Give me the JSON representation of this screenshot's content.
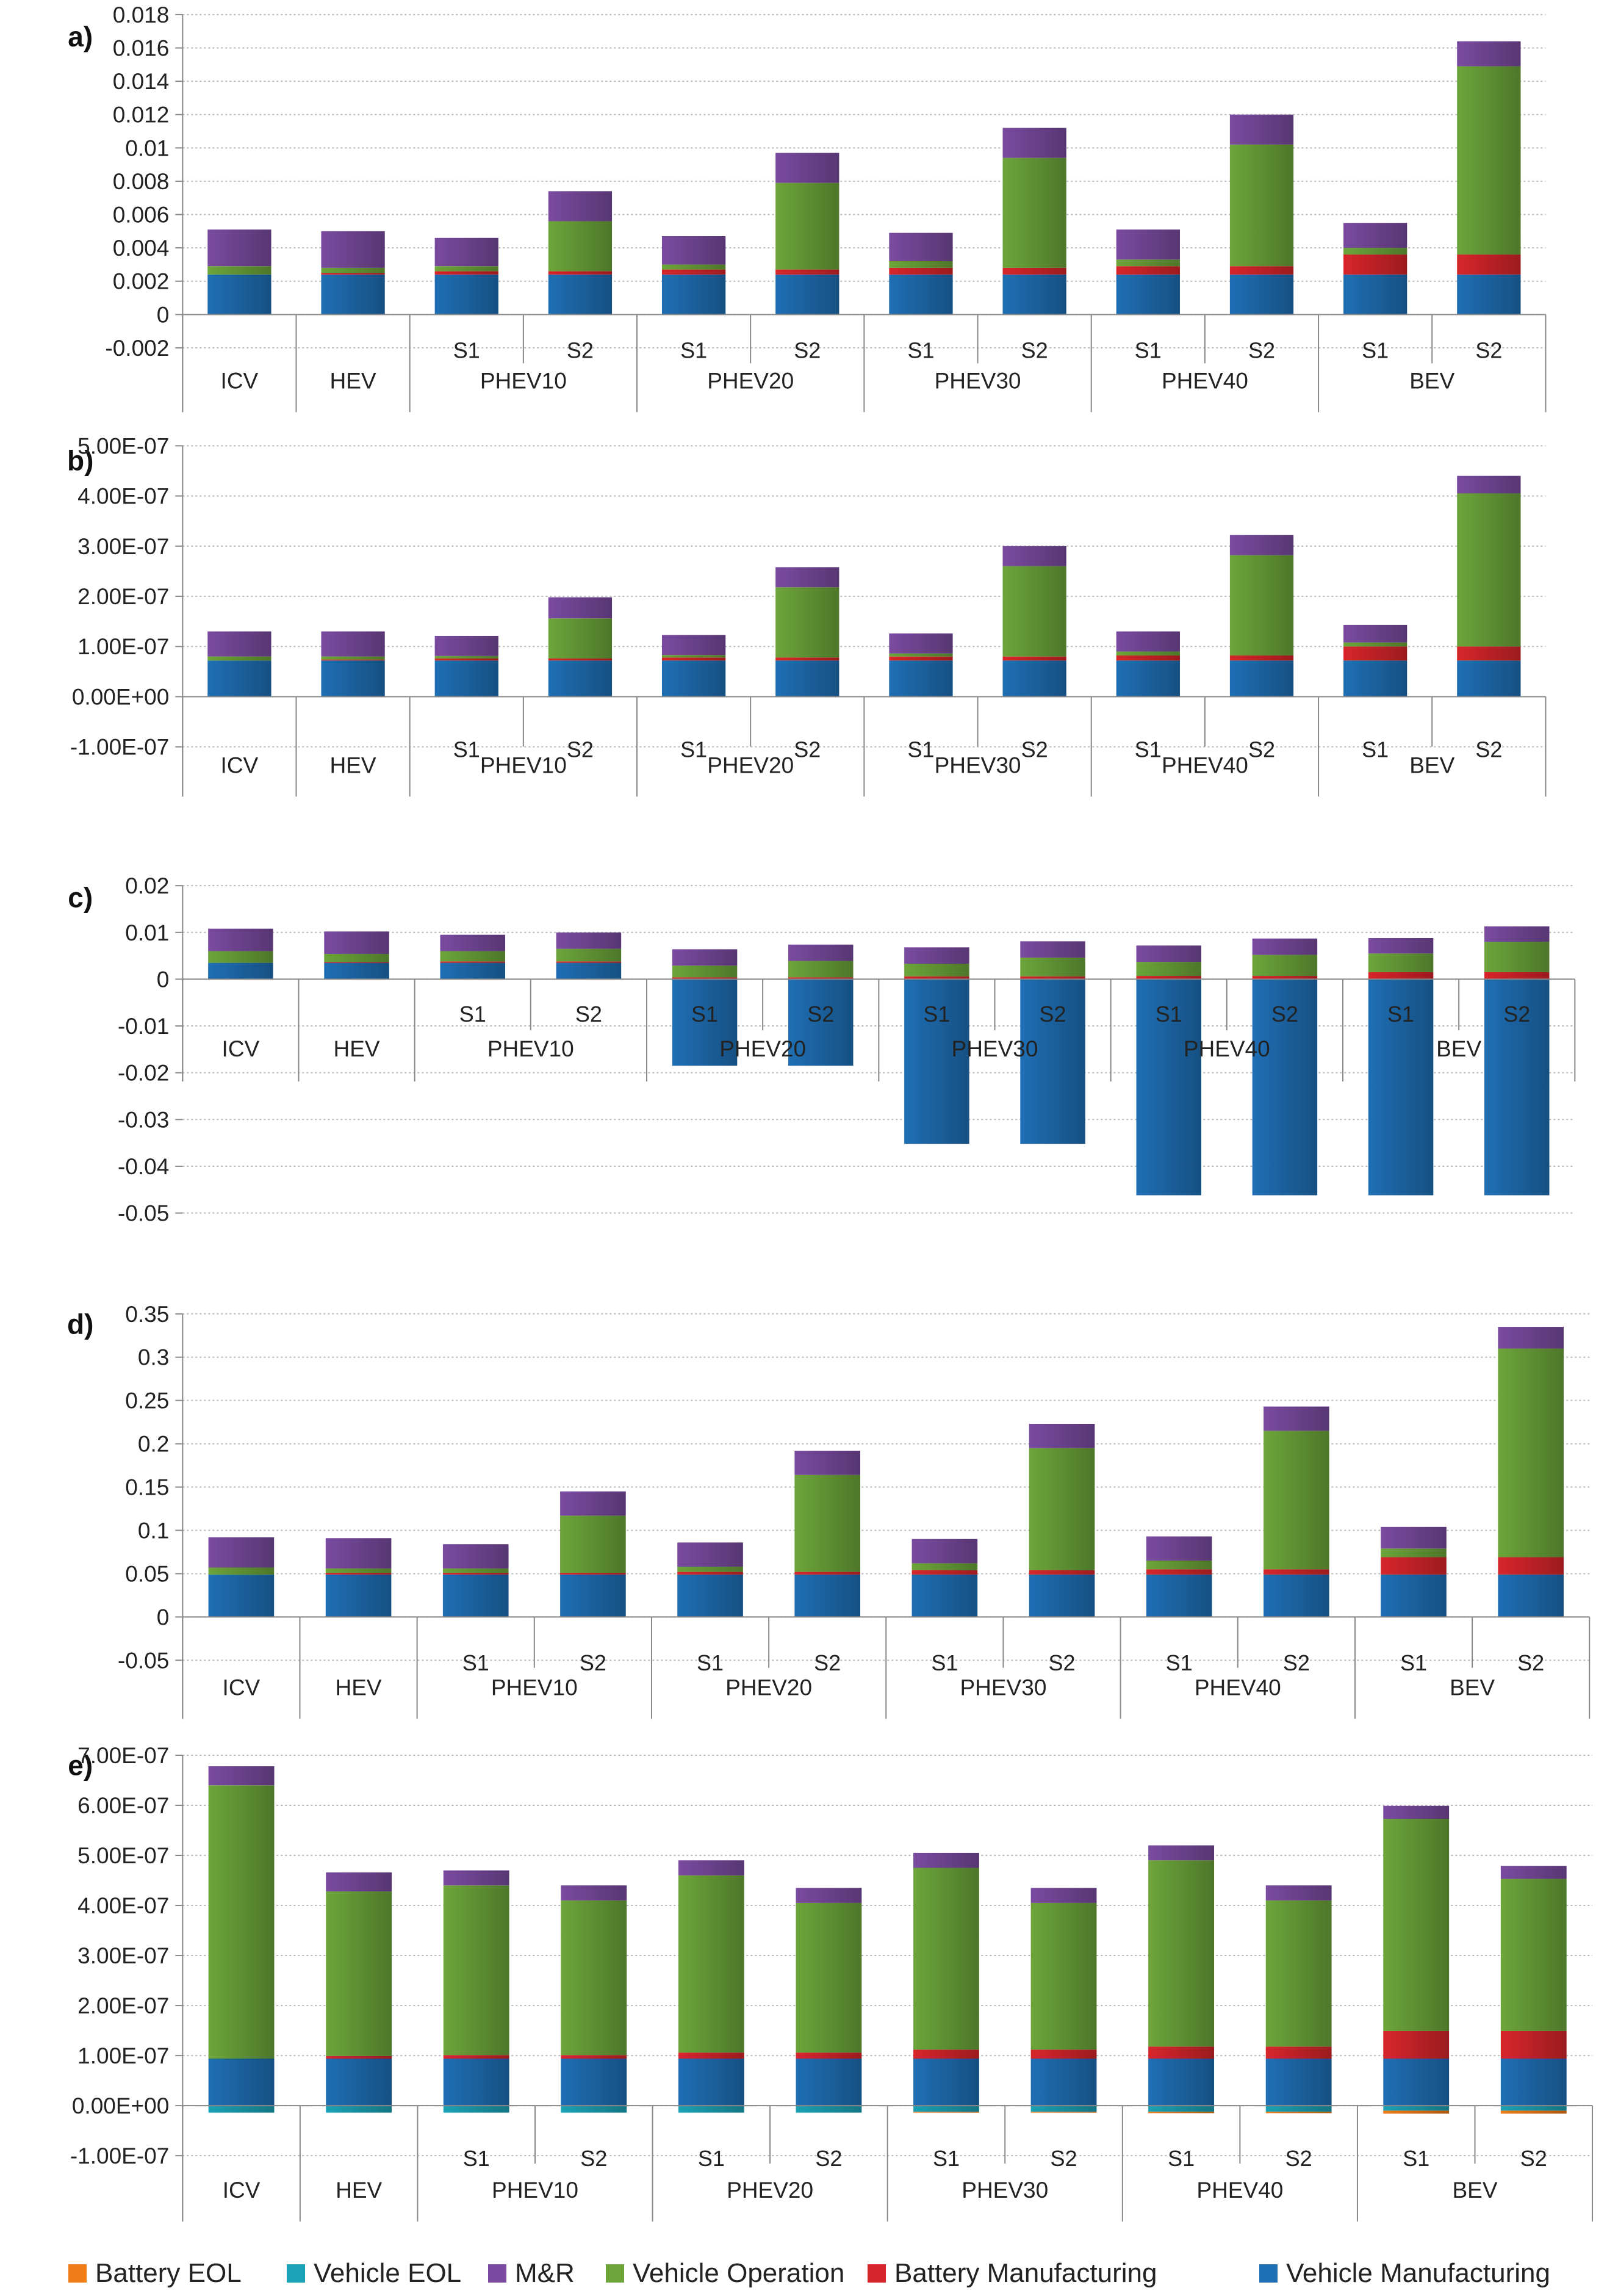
{
  "components": [
    {
      "key": "vm",
      "name": "Vehicle Manufacturing",
      "color": "#1f6fb5"
    },
    {
      "key": "bm",
      "name": "Battery Manufacturing",
      "color": "#d7262b"
    },
    {
      "key": "vo",
      "name": "Vehicle Operation",
      "color": "#6da53a"
    },
    {
      "key": "mr",
      "name": "M&R",
      "color": "#7a4ba0"
    },
    {
      "key": "veol",
      "name": "Vehicle EOL",
      "color": "#1aa2b6"
    },
    {
      "key": "beol",
      "name": "Battery EOL",
      "color": "#ef7d1a"
    }
  ],
  "legend_order": [
    "beol",
    "veol",
    "mr",
    "vo",
    "bm",
    "vm"
  ],
  "categories": [
    {
      "group": "ICV",
      "sub": ""
    },
    {
      "group": "HEV",
      "sub": ""
    },
    {
      "group": "PHEV10",
      "sub": "S1"
    },
    {
      "group": "PHEV10",
      "sub": "S2"
    },
    {
      "group": "PHEV20",
      "sub": "S1"
    },
    {
      "group": "PHEV20",
      "sub": "S2"
    },
    {
      "group": "PHEV30",
      "sub": "S1"
    },
    {
      "group": "PHEV30",
      "sub": "S2"
    },
    {
      "group": "PHEV40",
      "sub": "S1"
    },
    {
      "group": "PHEV40",
      "sub": "S2"
    },
    {
      "group": "BEV",
      "sub": "S1"
    },
    {
      "group": "BEV",
      "sub": "S2"
    }
  ],
  "groups": [
    "ICV",
    "HEV",
    "PHEV10",
    "PHEV20",
    "PHEV30",
    "PHEV40",
    "BEV"
  ],
  "chart_data": [
    {
      "type": "bar",
      "stacked": true,
      "panel_label": "a)",
      "ylim": [
        -0.002,
        0.018
      ],
      "yticks": [
        "0.018",
        "0.016",
        "0.014",
        "0.012",
        "0.01",
        "0.008",
        "0.006",
        "0.004",
        "0.002",
        "0",
        "-0.002"
      ],
      "ytick_values": [
        0.018,
        0.016,
        0.014,
        0.012,
        0.01,
        0.008,
        0.006,
        0.004,
        0.002,
        0,
        -0.002
      ],
      "grid": true,
      "series": [
        {
          "name": "Vehicle Manufacturing",
          "values": [
            0.0024,
            0.0024,
            0.0024,
            0.0024,
            0.0024,
            0.0024,
            0.0024,
            0.0024,
            0.0024,
            0.0024,
            0.0024,
            0.0024
          ]
        },
        {
          "name": "Battery Manufacturing",
          "values": [
            0,
            0.0001,
            0.0002,
            0.0002,
            0.0003,
            0.0003,
            0.0004,
            0.0004,
            0.0005,
            0.0005,
            0.0012,
            0.0012
          ]
        },
        {
          "name": "Vehicle Operation",
          "values": [
            0.0005,
            0.0003,
            0.0003,
            0.003,
            0.0003,
            0.0052,
            0.0004,
            0.0066,
            0.0004,
            0.0073,
            0.0004,
            0.0113
          ]
        },
        {
          "name": "M&R",
          "values": [
            0.0022,
            0.0022,
            0.0017,
            0.0018,
            0.0017,
            0.0018,
            0.0017,
            0.0018,
            0.0018,
            0.0018,
            0.0015,
            0.0015
          ]
        },
        {
          "name": "Vehicle EOL",
          "values": [
            0,
            0,
            0,
            0,
            0,
            0,
            0,
            0,
            0,
            0,
            0,
            0
          ]
        },
        {
          "name": "Battery EOL",
          "values": [
            0,
            0,
            0,
            0,
            0,
            0,
            0,
            0,
            0,
            0,
            0,
            0
          ]
        }
      ]
    },
    {
      "type": "bar",
      "stacked": true,
      "panel_label": "b)",
      "ylim": [
        -1e-07,
        5e-07
      ],
      "yticks": [
        "5.00E-07",
        "4.00E-07",
        "3.00E-07",
        "2.00E-07",
        "1.00E-07",
        "0.00E+00",
        "-1.00E-07"
      ],
      "ytick_values": [
        5e-07,
        4e-07,
        3e-07,
        2e-07,
        1e-07,
        0,
        -1e-07
      ],
      "grid": true,
      "series": [
        {
          "name": "Vehicle Manufacturing",
          "values": [
            7.2e-08,
            7.2e-08,
            7.2e-08,
            7.2e-08,
            7.2e-08,
            7.2e-08,
            7.2e-08,
            7.2e-08,
            7.2e-08,
            7.2e-08,
            7.2e-08,
            7.2e-08
          ]
        },
        {
          "name": "Battery Manufacturing",
          "values": [
            0,
            2e-09,
            4e-09,
            4e-09,
            6e-09,
            6e-09,
            8e-09,
            8e-09,
            1e-08,
            1e-08,
            2.8e-08,
            2.8e-08
          ]
        },
        {
          "name": "Vehicle Operation",
          "values": [
            8e-09,
            6e-09,
            5e-09,
            8e-08,
            5e-09,
            1.4e-07,
            6e-09,
            1.8e-07,
            8e-09,
            2e-07,
            8e-09,
            3.05e-07
          ]
        },
        {
          "name": "M&R",
          "values": [
            5e-08,
            5e-08,
            4e-08,
            4.2e-08,
            4e-08,
            4e-08,
            4e-08,
            4e-08,
            4e-08,
            4e-08,
            3.5e-08,
            3.5e-08
          ]
        },
        {
          "name": "Vehicle EOL",
          "values": [
            0,
            0,
            0,
            0,
            0,
            0,
            0,
            0,
            0,
            0,
            0,
            0
          ]
        },
        {
          "name": "Battery EOL",
          "values": [
            0,
            0,
            0,
            0,
            0,
            0,
            0,
            0,
            0,
            0,
            0,
            0
          ]
        }
      ]
    },
    {
      "type": "bar",
      "stacked": true,
      "panel_label": "c)",
      "ylim": [
        -0.05,
        0.02
      ],
      "yticks": [
        "0.02",
        "0.01",
        "0",
        "-0.01",
        "-0.02",
        "-0.03",
        "-0.04",
        "-0.05"
      ],
      "ytick_values": [
        0.02,
        0.01,
        0,
        -0.01,
        -0.02,
        -0.03,
        -0.04,
        -0.05
      ],
      "grid": true,
      "series": [
        {
          "name": "Vehicle Manufacturing",
          "values": [
            0.0035,
            0.0035,
            0.0035,
            0.0035,
            -0.0185,
            -0.0185,
            -0.0352,
            -0.0352,
            -0.0462,
            -0.0462,
            -0.0462,
            -0.0462
          ]
        },
        {
          "name": "Battery Manufacturing",
          "values": [
            0,
            0.0002,
            0.0003,
            0.0003,
            0.0004,
            0.0004,
            0.0006,
            0.0006,
            0.0007,
            0.0007,
            0.0015,
            0.0015
          ]
        },
        {
          "name": "Vehicle Operation",
          "values": [
            0.0025,
            0.0017,
            0.0022,
            0.0027,
            0.0025,
            0.0035,
            0.0027,
            0.004,
            0.003,
            0.0045,
            0.004,
            0.0065
          ]
        },
        {
          "name": "M&R",
          "values": [
            0.0048,
            0.0048,
            0.0035,
            0.0035,
            0.0035,
            0.0035,
            0.0035,
            0.0035,
            0.0035,
            0.0035,
            0.0033,
            0.0033
          ]
        },
        {
          "name": "Vehicle EOL",
          "values": [
            0,
            0,
            0,
            0,
            0,
            0,
            0,
            0,
            0,
            0,
            0,
            0
          ]
        },
        {
          "name": "Battery EOL",
          "values": [
            0,
            0,
            0,
            0,
            0,
            0,
            0,
            0,
            0,
            0,
            0,
            0
          ]
        }
      ]
    },
    {
      "type": "bar",
      "stacked": true,
      "panel_label": "d)",
      "ylim": [
        -0.05,
        0.35
      ],
      "yticks": [
        "0.35",
        "0.3",
        "0.25",
        "0.2",
        "0.15",
        "0.1",
        "0.05",
        "0",
        "-0.05"
      ],
      "ytick_values": [
        0.35,
        0.3,
        0.25,
        0.2,
        0.15,
        0.1,
        0.05,
        0,
        -0.05
      ],
      "grid": true,
      "series": [
        {
          "name": "Vehicle Manufacturing",
          "values": [
            0.049,
            0.049,
            0.049,
            0.049,
            0.049,
            0.049,
            0.049,
            0.049,
            0.049,
            0.049,
            0.049,
            0.049
          ]
        },
        {
          "name": "Battery Manufacturing",
          "values": [
            0,
            0.002,
            0.002,
            0.002,
            0.003,
            0.003,
            0.005,
            0.005,
            0.006,
            0.006,
            0.02,
            0.02
          ]
        },
        {
          "name": "Vehicle Operation",
          "values": [
            0.008,
            0.005,
            0.005,
            0.066,
            0.006,
            0.112,
            0.008,
            0.141,
            0.01,
            0.16,
            0.01,
            0.241
          ]
        },
        {
          "name": "M&R",
          "values": [
            0.035,
            0.035,
            0.028,
            0.028,
            0.028,
            0.028,
            0.028,
            0.028,
            0.028,
            0.028,
            0.025,
            0.025
          ]
        },
        {
          "name": "Vehicle EOL",
          "values": [
            0,
            0,
            0,
            0,
            0,
            0,
            0,
            0,
            0,
            0,
            0,
            0
          ]
        },
        {
          "name": "Battery EOL",
          "values": [
            0,
            0,
            0,
            0,
            0,
            0,
            0,
            0,
            0,
            0,
            0,
            0
          ]
        }
      ]
    },
    {
      "type": "bar",
      "stacked": true,
      "panel_label": "e)",
      "ylim": [
        -1e-07,
        7e-07
      ],
      "yticks": [
        "7.00E-07",
        "6.00E-07",
        "5.00E-07",
        "4.00E-07",
        "3.00E-07",
        "2.00E-07",
        "1.00E-07",
        "0.00E+00",
        "-1.00E-07"
      ],
      "ytick_values": [
        7e-07,
        6e-07,
        5e-07,
        4e-07,
        3e-07,
        2e-07,
        1e-07,
        0,
        -1e-07
      ],
      "grid": true,
      "series": [
        {
          "name": "Vehicle Manufacturing",
          "values": [
            9.4e-08,
            9.4e-08,
            9.4e-08,
            9.4e-08,
            9.4e-08,
            9.4e-08,
            9.4e-08,
            9.4e-08,
            9.4e-08,
            9.4e-08,
            9.4e-08,
            9.4e-08
          ]
        },
        {
          "name": "Battery Manufacturing",
          "values": [
            0,
            5e-09,
            7e-09,
            7e-09,
            1.2e-08,
            1.2e-08,
            1.8e-08,
            1.8e-08,
            2.4e-08,
            2.4e-08,
            5.5e-08,
            5.5e-08
          ]
        },
        {
          "name": "Vehicle Operation",
          "values": [
            5.46e-07,
            3.29e-07,
            3.39e-07,
            3.09e-07,
            3.54e-07,
            2.99e-07,
            3.63e-07,
            2.93e-07,
            3.72e-07,
            2.92e-07,
            4.24e-07,
            3.04e-07
          ]
        },
        {
          "name": "M&R",
          "values": [
            3.8e-08,
            3.8e-08,
            3e-08,
            3e-08,
            3e-08,
            3e-08,
            3e-08,
            3e-08,
            3e-08,
            3e-08,
            2.6e-08,
            2.6e-08
          ]
        },
        {
          "name": "Vehicle EOL",
          "values": [
            -1.4e-08,
            -1.4e-08,
            -1.4e-08,
            -1.4e-08,
            -1.4e-08,
            -1.4e-08,
            -1.2e-08,
            -1.2e-08,
            -1.2e-08,
            -1.2e-08,
            -1e-08,
            -1e-08
          ]
        },
        {
          "name": "Battery EOL",
          "values": [
            0,
            0,
            0,
            0,
            0,
            0,
            -2e-09,
            -2e-09,
            -3e-09,
            -3e-09,
            -6e-09,
            -6e-09
          ]
        }
      ]
    }
  ]
}
